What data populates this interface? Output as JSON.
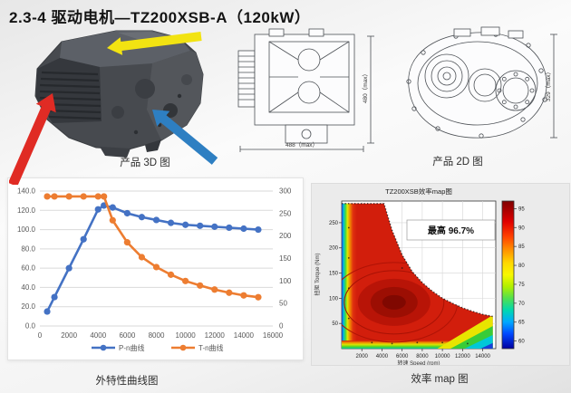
{
  "page": {
    "title": "2.3-4  驱动电机—TZ200XSB-A（120kW）"
  },
  "product_3d": {
    "caption": "产品 3D 图",
    "arrow_colors": {
      "yellow": "#f2e312",
      "red": "#e02b24",
      "blue": "#2e7fc2"
    }
  },
  "product_2d": {
    "caption": "产品 2D 图",
    "dim_width": "488（max）",
    "dim_height": "480（max）",
    "dim_side_height": "329（max）"
  },
  "chart_data": [
    {
      "type": "line",
      "caption": "外特性曲线图",
      "x": [
        500,
        1000,
        2000,
        3000,
        4000,
        4400,
        5000,
        6000,
        7000,
        8000,
        9000,
        10000,
        11000,
        12000,
        13000,
        14000,
        15000
      ],
      "series": [
        {
          "name": "P-n曲线",
          "color": "#4472c4",
          "axis": "left",
          "values": [
            15,
            30,
            60,
            90,
            121,
            125,
            123,
            117,
            113,
            110,
            107,
            105,
            104,
            103,
            102,
            101,
            100
          ]
        },
        {
          "name": "T-n曲线",
          "color": "#ed7d31",
          "axis": "right",
          "values": [
            288,
            288,
            288,
            288,
            288,
            288,
            235,
            186,
            153,
            131,
            114,
            100,
            90,
            81,
            74,
            68,
            64
          ]
        }
      ],
      "x_ticks": [
        0,
        2000,
        4000,
        6000,
        8000,
        10000,
        12000,
        14000,
        16000
      ],
      "x_max": 16000,
      "left_axis": {
        "min": 0,
        "max": 140,
        "step": 20,
        "decimals": 1
      },
      "right_axis": {
        "min": 0,
        "max": 300,
        "step": 50,
        "decimals": 0
      },
      "grid": true,
      "legend_position": "bottom"
    },
    {
      "type": "heatmap",
      "title": "TZ200XSB效率map图",
      "caption": "效率 map 图",
      "annotation": "最高 96.7%",
      "xlabel": "转速 Speed (rpm)",
      "ylabel": "扭矩 Torque (Nm)",
      "x_ticks": [
        2000,
        4000,
        6000,
        8000,
        10000,
        12000,
        14000
      ],
      "y_ticks": [
        50,
        100,
        150,
        200,
        250
      ],
      "x_max": 15300,
      "y_max": 293,
      "colorbar": {
        "ticks": [
          60,
          65,
          70,
          75,
          80,
          85,
          90,
          95
        ],
        "min": 58,
        "max": 97,
        "colormap": "jet"
      },
      "envelope": {
        "speed": [
          0,
          4200,
          5000,
          6000,
          7000,
          8000,
          9000,
          10000,
          11000,
          12000,
          13000,
          14000,
          15000
        ],
        "torque": [
          288,
          288,
          235,
          186,
          153,
          131,
          114,
          100,
          90,
          81,
          74,
          68,
          64
        ]
      },
      "peak": {
        "speed": 5200,
        "torque": 92,
        "efficiency_percent": 96.7
      }
    }
  ]
}
